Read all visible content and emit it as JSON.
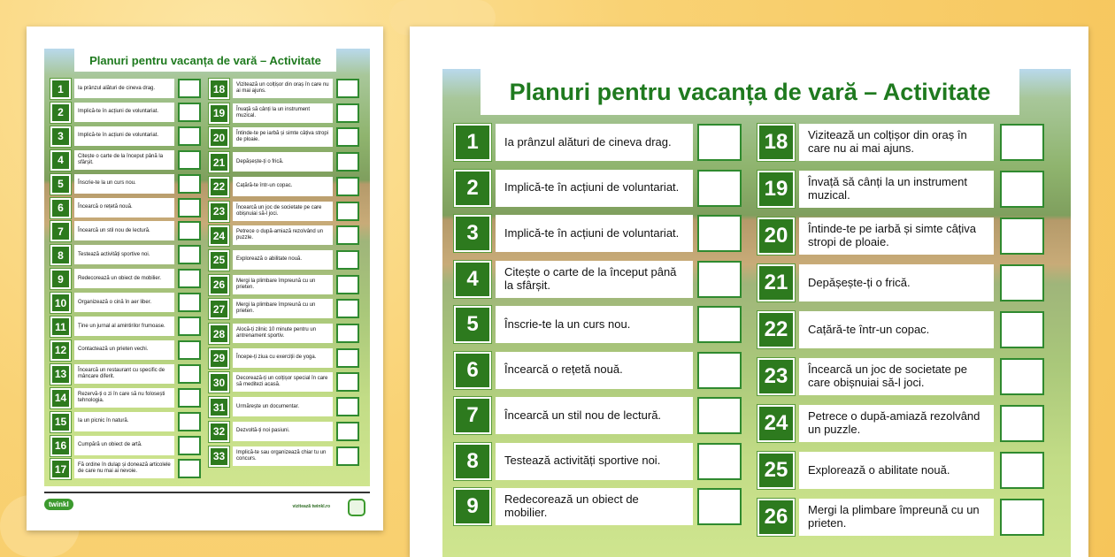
{
  "title": "Planuri pentru vacanța de vară – Activitate",
  "footer": {
    "logo": "twinkl",
    "url": "vizitează twinkl.ro"
  },
  "colors": {
    "accent_green": "#2d7a1e",
    "title_green": "#1f7a1f",
    "background": "#f9d274"
  },
  "items": [
    {
      "num": "1",
      "text": "Ia prânzul alături de cineva drag."
    },
    {
      "num": "2",
      "text": "Implică-te în acțiuni de voluntariat."
    },
    {
      "num": "3",
      "text": "Implică-te în acțiuni de voluntariat."
    },
    {
      "num": "4",
      "text": "Citește o carte de la început până la sfârșit."
    },
    {
      "num": "5",
      "text": "Înscrie-te la un curs nou."
    },
    {
      "num": "6",
      "text": "Încearcă o rețetă nouă."
    },
    {
      "num": "7",
      "text": "Încearcă un stil nou de lectură."
    },
    {
      "num": "8",
      "text": "Testează activități sportive noi."
    },
    {
      "num": "9",
      "text": "Redecorează un obiect de mobilier."
    },
    {
      "num": "10",
      "text": "Organizează o cină în aer liber."
    },
    {
      "num": "11",
      "text": "Ține un jurnal al amintirilor frumoase."
    },
    {
      "num": "12",
      "text": "Contactează un prieten vechi."
    },
    {
      "num": "13",
      "text": "Încearcă un restaurant cu specific de mâncare diferit."
    },
    {
      "num": "14",
      "text": "Rezervă-ți o zi în care să nu folosești tehnologia."
    },
    {
      "num": "15",
      "text": "Ia un picnic în natură."
    },
    {
      "num": "16",
      "text": "Cumpără un obiect de artă."
    },
    {
      "num": "17",
      "text": "Fă ordine în dulap și donează articolele de care nu mai ai nevoie."
    },
    {
      "num": "18",
      "text": "Vizitează un colțișor din oraș în care nu ai mai ajuns."
    },
    {
      "num": "19",
      "text": "Învață să cânți la un instrument muzical."
    },
    {
      "num": "20",
      "text": "Întinde-te pe iarbă și simte câțiva stropi de ploaie."
    },
    {
      "num": "21",
      "text": "Depășește-ți o frică."
    },
    {
      "num": "22",
      "text": "Cațără-te într-un copac."
    },
    {
      "num": "23",
      "text": "Încearcă un joc de societate pe care obișnuiai să-l joci."
    },
    {
      "num": "24",
      "text": "Petrece o după-amiază rezolvând un puzzle."
    },
    {
      "num": "25",
      "text": "Explorează o abilitate nouă."
    },
    {
      "num": "26",
      "text": "Mergi la plimbare împreună cu un prieten."
    },
    {
      "num": "27",
      "text": "Mergi la plimbare împreună cu un prieten."
    },
    {
      "num": "28",
      "text": "Alocă-ți zilnic 10 minute pentru un antrenament sportiv."
    },
    {
      "num": "29",
      "text": "Începe-ți ziua cu exerciții de yoga."
    },
    {
      "num": "30",
      "text": "Decorează-ți un colțișor special în care să meditezi acasă."
    },
    {
      "num": "31",
      "text": "Urmărește un documentar."
    },
    {
      "num": "32",
      "text": "Dezvoltă-ți noi pasiuni."
    },
    {
      "num": "33",
      "text": "Implică-te sau organizează chiar tu un concurs."
    }
  ]
}
